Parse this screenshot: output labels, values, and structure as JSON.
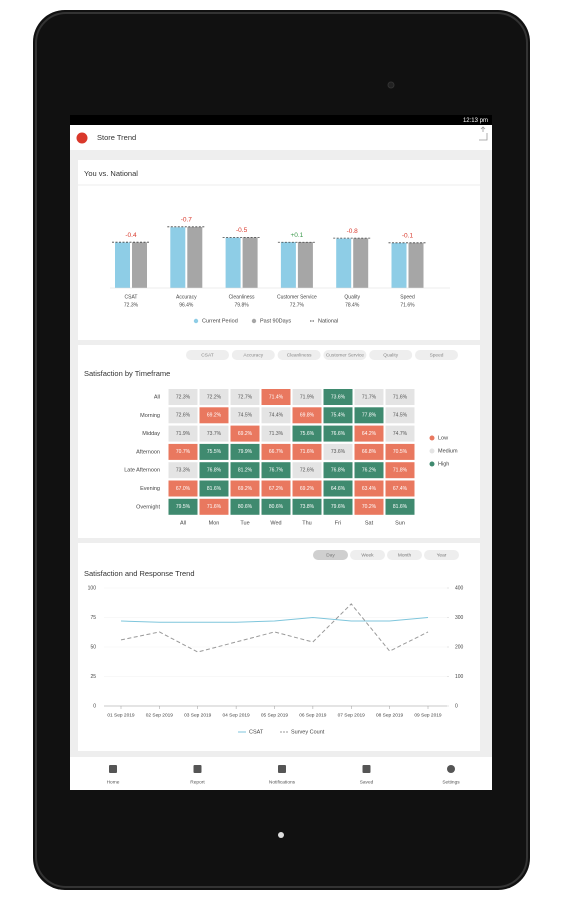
{
  "status_bar": {
    "time": "12:13 pm"
  },
  "app_bar": {
    "title": "Store Trend"
  },
  "national_card": {
    "title": "You vs. National",
    "chart_data": {
      "type": "bar",
      "categories": [
        "CSAT",
        "Accuracy",
        "Cleanliness",
        "Customer Service",
        "Quality",
        "Speed"
      ],
      "delta_labels": [
        "-0.4",
        "-0.7",
        "-0.5",
        "+0.1",
        "-0.8",
        "-0.1"
      ],
      "series": [
        {
          "name": "Current Period",
          "color": "#8ecde6",
          "values": [
            72.3,
            96.4,
            79.8,
            72.7,
            78.4,
            71.6
          ],
          "value_labels": [
            "72.3%",
            "96.4%",
            "79.8%",
            "72.7%",
            "78.4%",
            "71.6%"
          ]
        },
        {
          "name": "Past 90Days",
          "color": "#a6a6a6",
          "values": [
            72.5,
            96.8,
            80.1,
            72.9,
            78.9,
            71.8
          ]
        },
        {
          "name": "National",
          "color": "#444444",
          "dashed": true,
          "values": [
            72.7,
            97.1,
            80.3,
            72.6,
            79.2,
            71.7
          ]
        }
      ],
      "ylim": [
        0,
        100
      ]
    }
  },
  "timeframe_card": {
    "metric_tabs": [
      "CSAT",
      "Accuracy",
      "Cleanliness",
      "Customer Service",
      "Quality",
      "Speed"
    ],
    "title": "Satisfaction by Timeframe",
    "chart_data": {
      "type": "heatmap",
      "x": [
        "All",
        "Mon",
        "Tue",
        "Wed",
        "Thu",
        "Fri",
        "Sat",
        "Sun"
      ],
      "y": [
        "All",
        "Morning",
        "Midday",
        "Afternoon",
        "Late Afternoon",
        "Evening",
        "Overnight"
      ],
      "values": [
        [
          72.3,
          72.2,
          72.7,
          71.4,
          71.9,
          73.6,
          71.7,
          71.6
        ],
        [
          72.6,
          69.2,
          74.5,
          74.4,
          69.8,
          75.4,
          77.8,
          74.5
        ],
        [
          71.9,
          73.7,
          69.2,
          71.3,
          75.6,
          76.6,
          64.2,
          74.7
        ],
        [
          70.7,
          75.5,
          79.9,
          66.7,
          71.6,
          73.6,
          66.8,
          70.5
        ],
        [
          73.3,
          76.8,
          81.2,
          76.7,
          72.6,
          76.8,
          76.2,
          71.8
        ],
        [
          67.0,
          81.6,
          69.2,
          67.2,
          69.2,
          64.6,
          63.4,
          67.4
        ],
        [
          79.5,
          71.6,
          80.6,
          80.6,
          73.8,
          79.6,
          70.2,
          81.6
        ]
      ],
      "value_labels": [
        [
          "72.3%",
          "72.2%",
          "72.7%",
          "71.4%",
          "71.9%",
          "73.6%",
          "71.7%",
          "71.6%"
        ],
        [
          "72.6%",
          "69.2%",
          "74.5%",
          "74.4%",
          "69.8%",
          "75.4%",
          "77.8%",
          "74.5%"
        ],
        [
          "71.9%",
          "73.7%",
          "69.2%",
          "71.3%",
          "75.6%",
          "76.6%",
          "64.2%",
          "74.7%"
        ],
        [
          "70.7%",
          "75.5%",
          "79.9%",
          "66.7%",
          "71.6%",
          "73.6%",
          "66.8%",
          "70.5%"
        ],
        [
          "73.3%",
          "76.8%",
          "81.2%",
          "76.7%",
          "72.6%",
          "76.8%",
          "76.2%",
          "71.8%"
        ],
        [
          "67.0%",
          "81.6%",
          "69.2%",
          "67.2%",
          "69.2%",
          "64.6%",
          "63.4%",
          "67.4%"
        ],
        [
          "79.5%",
          "71.6%",
          "80.6%",
          "80.6%",
          "73.8%",
          "79.6%",
          "70.2%",
          "81.6%"
        ]
      ],
      "levels": [
        [
          1,
          1,
          1,
          0,
          1,
          2,
          1,
          1
        ],
        [
          1,
          0,
          1,
          1,
          0,
          2,
          2,
          1
        ],
        [
          1,
          1,
          0,
          1,
          2,
          2,
          0,
          1
        ],
        [
          0,
          2,
          2,
          0,
          0,
          1,
          0,
          0
        ],
        [
          1,
          2,
          2,
          2,
          1,
          2,
          2,
          0
        ],
        [
          0,
          2,
          0,
          0,
          0,
          2,
          0,
          0
        ],
        [
          2,
          0,
          2,
          2,
          2,
          2,
          0,
          2
        ]
      ],
      "legend": [
        {
          "name": "Low",
          "color": "#e9785f"
        },
        {
          "name": "Medium",
          "color": "#e4e4e4"
        },
        {
          "name": "High",
          "color": "#3f8a6f"
        }
      ]
    }
  },
  "trend_card": {
    "period_tabs": [
      "Day",
      "Week",
      "Month",
      "Year"
    ],
    "selected_tab": 0,
    "title": "Satisfaction and Response Trend",
    "chart_data": {
      "type": "line",
      "x": [
        "01 Sep 2019",
        "02 Sep 2019",
        "03 Sep 2019",
        "04 Sep 2019",
        "05 Sep 2019",
        "06 Sep 2019",
        "07 Sep 2019",
        "08 Sep 2019",
        "09 Sep 2019"
      ],
      "series": [
        {
          "name": "CSAT",
          "color": "#7fc6dc",
          "values": [
            72,
            71,
            71,
            71,
            72,
            75,
            72,
            72,
            75
          ]
        },
        {
          "name": "Survey Count",
          "color": "#999999",
          "dashed": true,
          "axis": "y2",
          "values": [
            224,
            251,
            183,
            217,
            251,
            217,
            346,
            186,
            251
          ]
        }
      ],
      "ylim": [
        0,
        100
      ],
      "yticks": [
        0,
        25,
        50,
        75,
        100
      ],
      "y2lim": [
        0,
        400
      ],
      "y2ticks": [
        0,
        100,
        200,
        300,
        400
      ]
    }
  },
  "bottom_nav": {
    "items": [
      "Home",
      "Report",
      "Notifications",
      "Saved",
      "Settings"
    ]
  }
}
